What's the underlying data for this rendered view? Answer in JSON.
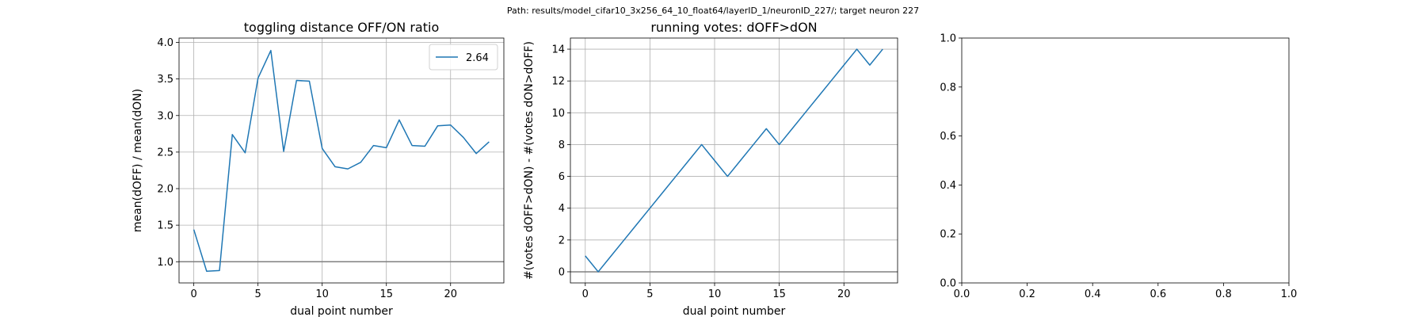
{
  "suptitle": "Path: results/model_cifar10_3x256_64_10_float64/layerID_1/neuronID_227/; target neuron 227",
  "colors": {
    "line": "#1f77b4",
    "hline": "#808080",
    "grid": "#b0b0b0"
  },
  "chart_data": [
    {
      "type": "line",
      "title": "toggling distance OFF/ON ratio",
      "xlabel": "dual point number",
      "ylabel": "mean(dOFF) / mean(dON)",
      "xlim": [
        -1.15,
        24.15
      ],
      "ylim": [
        0.71,
        4.06
      ],
      "xticks": [
        0,
        5,
        10,
        15,
        20
      ],
      "yticks": [
        1.0,
        1.5,
        2.0,
        2.5,
        3.0,
        3.5,
        4.0
      ],
      "xtick_labels": [
        "0",
        "5",
        "10",
        "15",
        "20"
      ],
      "ytick_labels": [
        "1.0",
        "1.5",
        "2.0",
        "2.5",
        "3.0",
        "3.5",
        "4.0"
      ],
      "grid": true,
      "hline": 1.0,
      "legend": {
        "placement": "top-right",
        "entries": [
          "2.64"
        ]
      },
      "series": [
        {
          "name": "2.64",
          "x": [
            0,
            1,
            2,
            3,
            4,
            5,
            6,
            7,
            8,
            9,
            10,
            11,
            12,
            13,
            14,
            15,
            16,
            17,
            18,
            19,
            20,
            21,
            22,
            23
          ],
          "y": [
            1.44,
            0.87,
            0.88,
            2.74,
            2.49,
            3.51,
            3.89,
            2.51,
            3.48,
            3.47,
            2.55,
            2.3,
            2.27,
            2.36,
            2.59,
            2.56,
            2.94,
            2.59,
            2.58,
            2.86,
            2.87,
            2.7,
            2.48,
            2.64
          ]
        }
      ]
    },
    {
      "type": "line",
      "title": "running votes: dOFF>dON",
      "xlabel": "dual point number",
      "ylabel": "#(votes dOFF>dON) - #(votes dON>dOFF)",
      "xlim": [
        -1.15,
        24.15
      ],
      "ylim": [
        -0.7,
        14.7
      ],
      "xticks": [
        0,
        5,
        10,
        15,
        20
      ],
      "yticks": [
        0,
        2,
        4,
        6,
        8,
        10,
        12,
        14
      ],
      "xtick_labels": [
        "0",
        "5",
        "10",
        "15",
        "20"
      ],
      "ytick_labels": [
        "0",
        "2",
        "4",
        "6",
        "8",
        "10",
        "12",
        "14"
      ],
      "grid": true,
      "hline": 0,
      "series": [
        {
          "x": [
            0,
            1,
            2,
            3,
            4,
            5,
            6,
            7,
            8,
            9,
            10,
            11,
            12,
            13,
            14,
            15,
            16,
            17,
            18,
            19,
            20,
            21,
            22,
            23
          ],
          "y": [
            1,
            0,
            1,
            2,
            3,
            4,
            5,
            6,
            7,
            8,
            7,
            6,
            7,
            8,
            9,
            8,
            9,
            10,
            11,
            12,
            13,
            14,
            13,
            14
          ]
        }
      ]
    },
    {
      "type": "line",
      "title": "",
      "xlabel": "",
      "ylabel": "",
      "xlim": [
        0,
        1
      ],
      "ylim": [
        0,
        1
      ],
      "xticks": [
        0,
        0.2,
        0.4,
        0.6,
        0.8,
        1.0
      ],
      "yticks": [
        0,
        0.2,
        0.4,
        0.6,
        0.8,
        1.0
      ],
      "xtick_labels": [
        "0.0",
        "0.2",
        "0.4",
        "0.6",
        "0.8",
        "1.0"
      ],
      "ytick_labels": [
        "0.0",
        "0.2",
        "0.4",
        "0.6",
        "0.8",
        "1.0"
      ],
      "grid": false,
      "series": []
    }
  ]
}
